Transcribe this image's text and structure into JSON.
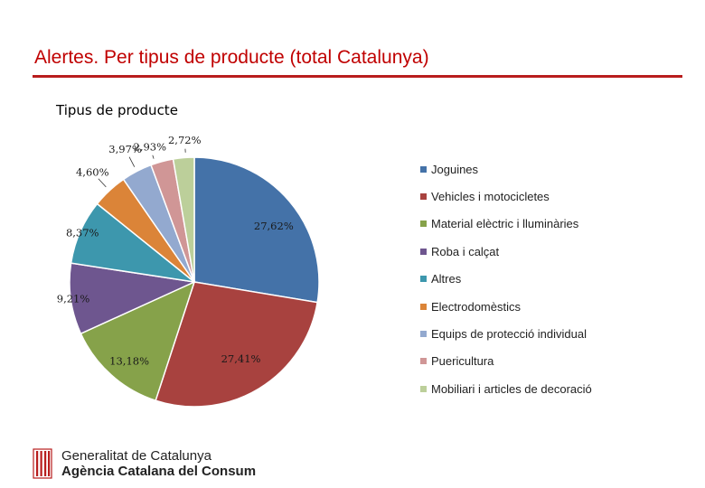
{
  "slide": {
    "title": "Alertes. Per tipus de producte (total Catalunya)"
  },
  "footer": {
    "org_line1": "Generalitat de Catalunya",
    "org_line2": "Agència Catalana del Consum",
    "logo_icon": "generalitat-logo-icon"
  },
  "chart_data": {
    "type": "pie",
    "title": "Tipus de producte",
    "legend_position": "right",
    "slices": [
      {
        "label": "Joguines",
        "value": 27.62,
        "value_label": "27,62%",
        "color": "#4472a8"
      },
      {
        "label": "Vehicles i motocicletes",
        "value": 27.41,
        "value_label": "27,41%",
        "color": "#a8423f"
      },
      {
        "label": "Material elèctric i lluminàries",
        "value": 13.18,
        "value_label": "13,18%",
        "color": "#86a24a"
      },
      {
        "label": "Roba i calçat",
        "value": 9.21,
        "value_label": "9,21%",
        "color": "#6e568f"
      },
      {
        "label": "Altres",
        "value": 8.37,
        "value_label": "8,37%",
        "color": "#3d97ad"
      },
      {
        "label": "Electrodomèstics",
        "value": 4.6,
        "value_label": "4,60%",
        "color": "#db8438"
      },
      {
        "label": "Equips de protecció individual",
        "value": 3.97,
        "value_label": "3,97%",
        "color": "#93a9cf"
      },
      {
        "label": "Puericultura",
        "value": 2.93,
        "value_label": "2,93%",
        "color": "#d09696"
      },
      {
        "label": "Mobiliari i articles de decoració",
        "value": 2.72,
        "value_label": "2,72%",
        "color": "#bccf9a"
      }
    ]
  }
}
